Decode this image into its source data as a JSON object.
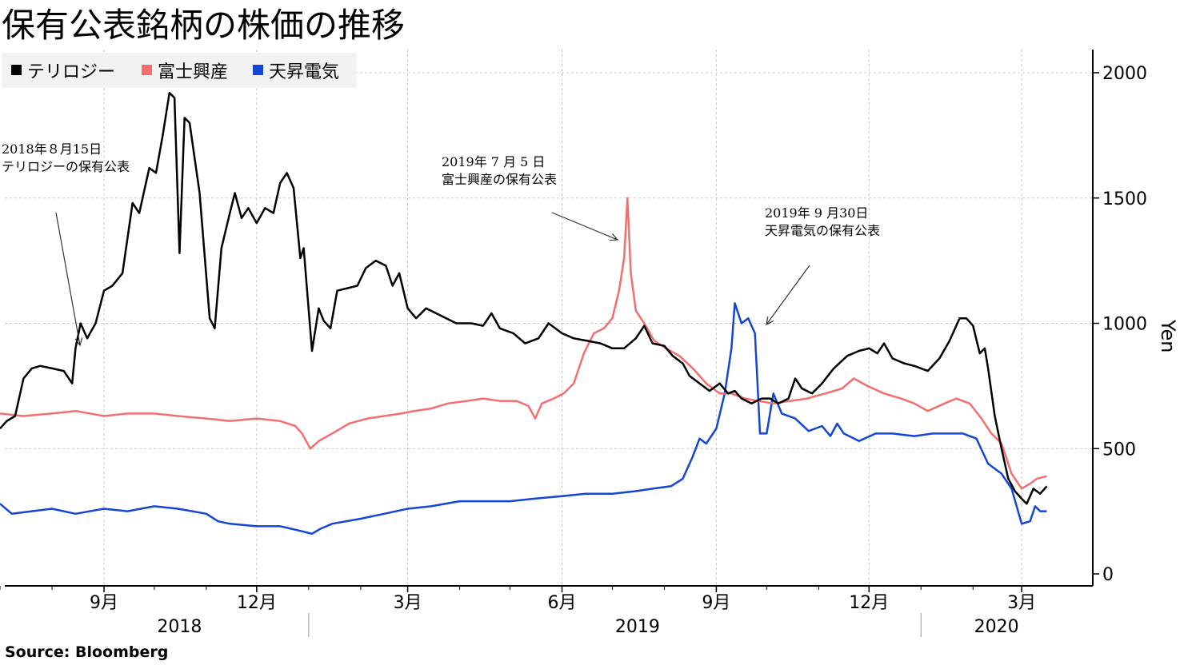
{
  "chart_data": {
    "type": "line",
    "title": "保有公表銘柄の株価の推移",
    "ylabel": "Yen",
    "ylim": [
      0,
      2000
    ],
    "yticks": [
      0,
      500,
      1000,
      1500,
      2000
    ],
    "x_range": [
      "2018-07-01",
      "2020-03-31"
    ],
    "x_month_ticks": [
      {
        "date": "2018-09-01",
        "label": "9月"
      },
      {
        "date": "2018-12-01",
        "label": "12月"
      },
      {
        "date": "2019-03-01",
        "label": "3月"
      },
      {
        "date": "2019-06-01",
        "label": "6月"
      },
      {
        "date": "2019-09-01",
        "label": "9月"
      },
      {
        "date": "2019-12-01",
        "label": "12月"
      },
      {
        "date": "2020-03-01",
        "label": "3月"
      }
    ],
    "x_year_labels": [
      {
        "date": "2018-10-16",
        "label": "2018"
      },
      {
        "date": "2019-07-16",
        "label": "2019"
      },
      {
        "date": "2020-02-15",
        "label": "2020"
      }
    ],
    "legend_position": "top-left",
    "grid": true,
    "series": [
      {
        "name": "テリロジー",
        "color": "#000000",
        "points": [
          [
            "2018-07-01",
            580
          ],
          [
            "2018-07-05",
            610
          ],
          [
            "2018-07-10",
            630
          ],
          [
            "2018-07-15",
            780
          ],
          [
            "2018-07-20",
            820
          ],
          [
            "2018-07-25",
            830
          ],
          [
            "2018-08-01",
            820
          ],
          [
            "2018-08-08",
            810
          ],
          [
            "2018-08-13",
            760
          ],
          [
            "2018-08-15",
            900
          ],
          [
            "2018-08-18",
            1000
          ],
          [
            "2018-08-22",
            940
          ],
          [
            "2018-08-27",
            1000
          ],
          [
            "2018-09-01",
            1130
          ],
          [
            "2018-09-06",
            1150
          ],
          [
            "2018-09-12",
            1200
          ],
          [
            "2018-09-18",
            1480
          ],
          [
            "2018-09-22",
            1440
          ],
          [
            "2018-09-28",
            1620
          ],
          [
            "2018-10-02",
            1600
          ],
          [
            "2018-10-06",
            1750
          ],
          [
            "2018-10-10",
            1920
          ],
          [
            "2018-10-13",
            1900
          ],
          [
            "2018-10-16",
            1280
          ],
          [
            "2018-10-19",
            1820
          ],
          [
            "2018-10-22",
            1800
          ],
          [
            "2018-10-28",
            1520
          ],
          [
            "2018-11-03",
            1020
          ],
          [
            "2018-11-06",
            980
          ],
          [
            "2018-11-10",
            1300
          ],
          [
            "2018-11-15",
            1440
          ],
          [
            "2018-11-18",
            1520
          ],
          [
            "2018-11-22",
            1420
          ],
          [
            "2018-11-26",
            1460
          ],
          [
            "2018-12-01",
            1400
          ],
          [
            "2018-12-06",
            1460
          ],
          [
            "2018-12-11",
            1440
          ],
          [
            "2018-12-15",
            1560
          ],
          [
            "2018-12-19",
            1600
          ],
          [
            "2018-12-23",
            1540
          ],
          [
            "2018-12-27",
            1260
          ],
          [
            "2018-12-29",
            1300
          ],
          [
            "2019-01-03",
            890
          ],
          [
            "2019-01-07",
            1060
          ],
          [
            "2019-01-10",
            1010
          ],
          [
            "2019-01-14",
            980
          ],
          [
            "2019-01-18",
            1130
          ],
          [
            "2019-01-24",
            1140
          ],
          [
            "2019-01-30",
            1150
          ],
          [
            "2019-02-04",
            1220
          ],
          [
            "2019-02-10",
            1250
          ],
          [
            "2019-02-16",
            1230
          ],
          [
            "2019-02-20",
            1150
          ],
          [
            "2019-02-24",
            1200
          ],
          [
            "2019-03-01",
            1060
          ],
          [
            "2019-03-06",
            1020
          ],
          [
            "2019-03-12",
            1060
          ],
          [
            "2019-03-18",
            1040
          ],
          [
            "2019-03-24",
            1020
          ],
          [
            "2019-03-30",
            1000
          ],
          [
            "2019-04-08",
            1000
          ],
          [
            "2019-04-15",
            990
          ],
          [
            "2019-04-20",
            1040
          ],
          [
            "2019-04-25",
            980
          ],
          [
            "2019-05-03",
            960
          ],
          [
            "2019-05-10",
            920
          ],
          [
            "2019-05-18",
            940
          ],
          [
            "2019-05-24",
            1000
          ],
          [
            "2019-06-01",
            960
          ],
          [
            "2019-06-08",
            940
          ],
          [
            "2019-06-16",
            930
          ],
          [
            "2019-06-24",
            920
          ],
          [
            "2019-07-01",
            900
          ],
          [
            "2019-07-08",
            900
          ],
          [
            "2019-07-15",
            940
          ],
          [
            "2019-07-20",
            990
          ],
          [
            "2019-07-25",
            920
          ],
          [
            "2019-08-01",
            910
          ],
          [
            "2019-08-06",
            870
          ],
          [
            "2019-08-12",
            840
          ],
          [
            "2019-08-16",
            790
          ],
          [
            "2019-08-22",
            760
          ],
          [
            "2019-08-28",
            730
          ],
          [
            "2019-09-03",
            760
          ],
          [
            "2019-09-08",
            720
          ],
          [
            "2019-09-12",
            730
          ],
          [
            "2019-09-16",
            700
          ],
          [
            "2019-09-22",
            680
          ],
          [
            "2019-09-28",
            700
          ],
          [
            "2019-10-03",
            700
          ],
          [
            "2019-10-08",
            680
          ],
          [
            "2019-10-14",
            700
          ],
          [
            "2019-10-18",
            780
          ],
          [
            "2019-10-22",
            740
          ],
          [
            "2019-10-28",
            720
          ],
          [
            "2019-11-03",
            760
          ],
          [
            "2019-11-10",
            820
          ],
          [
            "2019-11-18",
            870
          ],
          [
            "2019-11-25",
            890
          ],
          [
            "2019-12-01",
            900
          ],
          [
            "2019-12-06",
            880
          ],
          [
            "2019-12-10",
            920
          ],
          [
            "2019-12-15",
            860
          ],
          [
            "2019-12-22",
            840
          ],
          [
            "2019-12-28",
            830
          ],
          [
            "2020-01-05",
            810
          ],
          [
            "2020-01-12",
            860
          ],
          [
            "2020-01-18",
            930
          ],
          [
            "2020-01-24",
            1020
          ],
          [
            "2020-01-28",
            1020
          ],
          [
            "2020-02-01",
            990
          ],
          [
            "2020-02-05",
            880
          ],
          [
            "2020-02-08",
            900
          ],
          [
            "2020-02-10",
            820
          ],
          [
            "2020-02-14",
            630
          ],
          [
            "2020-02-18",
            500
          ],
          [
            "2020-02-22",
            380
          ],
          [
            "2020-02-26",
            330
          ],
          [
            "2020-03-01",
            300
          ],
          [
            "2020-03-04",
            280
          ],
          [
            "2020-03-08",
            340
          ],
          [
            "2020-03-12",
            320
          ],
          [
            "2020-03-16",
            350
          ]
        ]
      },
      {
        "name": "富士興産",
        "color": "#f36f6f",
        "points": [
          [
            "2018-07-01",
            640
          ],
          [
            "2018-07-15",
            630
          ],
          [
            "2018-08-01",
            640
          ],
          [
            "2018-08-15",
            650
          ],
          [
            "2018-09-01",
            630
          ],
          [
            "2018-09-15",
            640
          ],
          [
            "2018-10-01",
            640
          ],
          [
            "2018-10-15",
            630
          ],
          [
            "2018-11-01",
            620
          ],
          [
            "2018-11-15",
            610
          ],
          [
            "2018-12-01",
            620
          ],
          [
            "2018-12-15",
            610
          ],
          [
            "2018-12-24",
            590
          ],
          [
            "2018-12-28",
            560
          ],
          [
            "2019-01-02",
            500
          ],
          [
            "2019-01-07",
            530
          ],
          [
            "2019-01-15",
            560
          ],
          [
            "2019-01-25",
            600
          ],
          [
            "2019-02-05",
            620
          ],
          [
            "2019-02-15",
            630
          ],
          [
            "2019-02-25",
            640
          ],
          [
            "2019-03-05",
            650
          ],
          [
            "2019-03-15",
            660
          ],
          [
            "2019-03-25",
            680
          ],
          [
            "2019-04-05",
            690
          ],
          [
            "2019-04-15",
            700
          ],
          [
            "2019-04-25",
            690
          ],
          [
            "2019-05-05",
            690
          ],
          [
            "2019-05-12",
            670
          ],
          [
            "2019-05-16",
            620
          ],
          [
            "2019-05-20",
            680
          ],
          [
            "2019-05-27",
            700
          ],
          [
            "2019-06-02",
            720
          ],
          [
            "2019-06-08",
            760
          ],
          [
            "2019-06-14",
            880
          ],
          [
            "2019-06-20",
            960
          ],
          [
            "2019-06-26",
            980
          ],
          [
            "2019-07-01",
            1020
          ],
          [
            "2019-07-05",
            1130
          ],
          [
            "2019-07-08",
            1260
          ],
          [
            "2019-07-10",
            1500
          ],
          [
            "2019-07-12",
            1200
          ],
          [
            "2019-07-15",
            1050
          ],
          [
            "2019-07-20",
            1000
          ],
          [
            "2019-07-26",
            930
          ],
          [
            "2019-08-02",
            900
          ],
          [
            "2019-08-10",
            870
          ],
          [
            "2019-08-18",
            820
          ],
          [
            "2019-08-26",
            760
          ],
          [
            "2019-09-03",
            720
          ],
          [
            "2019-09-10",
            720
          ],
          [
            "2019-09-18",
            700
          ],
          [
            "2019-09-26",
            690
          ],
          [
            "2019-10-05",
            680
          ],
          [
            "2019-10-15",
            690
          ],
          [
            "2019-10-25",
            700
          ],
          [
            "2019-11-05",
            720
          ],
          [
            "2019-11-15",
            740
          ],
          [
            "2019-11-22",
            780
          ],
          [
            "2019-11-30",
            750
          ],
          [
            "2019-12-10",
            720
          ],
          [
            "2019-12-20",
            700
          ],
          [
            "2019-12-28",
            680
          ],
          [
            "2020-01-05",
            650
          ],
          [
            "2020-01-15",
            680
          ],
          [
            "2020-01-22",
            700
          ],
          [
            "2020-01-30",
            680
          ],
          [
            "2020-02-06",
            620
          ],
          [
            "2020-02-12",
            560
          ],
          [
            "2020-02-18",
            520
          ],
          [
            "2020-02-24",
            400
          ],
          [
            "2020-03-01",
            340
          ],
          [
            "2020-03-06",
            360
          ],
          [
            "2020-03-10",
            380
          ],
          [
            "2020-03-16",
            390
          ]
        ]
      },
      {
        "name": "天昇電気",
        "color": "#1346d6",
        "points": [
          [
            "2018-07-01",
            280
          ],
          [
            "2018-07-08",
            240
          ],
          [
            "2018-07-20",
            250
          ],
          [
            "2018-08-01",
            260
          ],
          [
            "2018-08-15",
            240
          ],
          [
            "2018-09-01",
            260
          ],
          [
            "2018-09-15",
            250
          ],
          [
            "2018-10-01",
            270
          ],
          [
            "2018-10-15",
            260
          ],
          [
            "2018-11-01",
            240
          ],
          [
            "2018-11-08",
            210
          ],
          [
            "2018-11-15",
            200
          ],
          [
            "2018-12-01",
            190
          ],
          [
            "2018-12-15",
            190
          ],
          [
            "2018-12-28",
            170
          ],
          [
            "2019-01-03",
            160
          ],
          [
            "2019-01-08",
            180
          ],
          [
            "2019-01-15",
            200
          ],
          [
            "2019-02-01",
            220
          ],
          [
            "2019-02-15",
            240
          ],
          [
            "2019-03-01",
            260
          ],
          [
            "2019-03-15",
            270
          ],
          [
            "2019-04-01",
            290
          ],
          [
            "2019-04-15",
            290
          ],
          [
            "2019-05-01",
            290
          ],
          [
            "2019-05-15",
            300
          ],
          [
            "2019-06-01",
            310
          ],
          [
            "2019-06-15",
            320
          ],
          [
            "2019-07-01",
            320
          ],
          [
            "2019-07-15",
            330
          ],
          [
            "2019-07-25",
            340
          ],
          [
            "2019-08-05",
            350
          ],
          [
            "2019-08-12",
            380
          ],
          [
            "2019-08-18",
            470
          ],
          [
            "2019-08-22",
            540
          ],
          [
            "2019-08-26",
            520
          ],
          [
            "2019-09-01",
            580
          ],
          [
            "2019-09-06",
            720
          ],
          [
            "2019-09-10",
            900
          ],
          [
            "2019-09-12",
            1080
          ],
          [
            "2019-09-16",
            1000
          ],
          [
            "2019-09-20",
            1020
          ],
          [
            "2019-09-24",
            960
          ],
          [
            "2019-09-27",
            560
          ],
          [
            "2019-10-01",
            560
          ],
          [
            "2019-10-05",
            720
          ],
          [
            "2019-10-10",
            640
          ],
          [
            "2019-10-18",
            620
          ],
          [
            "2019-10-26",
            570
          ],
          [
            "2019-11-03",
            590
          ],
          [
            "2019-11-08",
            550
          ],
          [
            "2019-11-12",
            600
          ],
          [
            "2019-11-16",
            560
          ],
          [
            "2019-11-25",
            530
          ],
          [
            "2019-12-05",
            560
          ],
          [
            "2019-12-15",
            560
          ],
          [
            "2019-12-28",
            550
          ],
          [
            "2020-01-08",
            560
          ],
          [
            "2020-01-18",
            560
          ],
          [
            "2020-01-26",
            560
          ],
          [
            "2020-02-03",
            540
          ],
          [
            "2020-02-10",
            440
          ],
          [
            "2020-02-18",
            400
          ],
          [
            "2020-02-24",
            340
          ],
          [
            "2020-03-01",
            200
          ],
          [
            "2020-03-06",
            210
          ],
          [
            "2020-03-09",
            270
          ],
          [
            "2020-03-12",
            250
          ],
          [
            "2020-03-16",
            250
          ]
        ]
      }
    ],
    "annotations": [
      {
        "lines": [
          "2018年８月15日",
          "テリロジーの保有公表"
        ],
        "date": "2018-08-15",
        "value": 890
      },
      {
        "lines": [
          "2019年 7 月 5 日",
          "富士興産の保有公表"
        ],
        "date": "2019-07-05",
        "value": 1340
      },
      {
        "lines": [
          "2019年 9 月30日",
          "天昇電気の保有公表"
        ],
        "date": "2019-09-30",
        "value": 1000
      }
    ],
    "source": "Source:  Bloomberg"
  }
}
